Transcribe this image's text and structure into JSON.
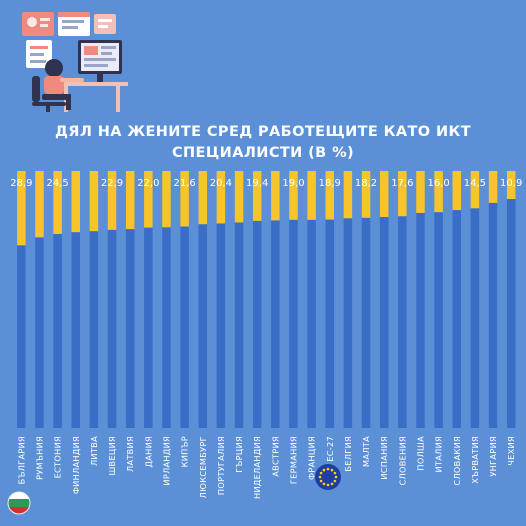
{
  "title_lines": [
    "ДЯЛ НА ЖЕНИТЕ СРЕД РАБОТЕЩИТЕ КАТО ИКТ",
    "СПЕЦИАЛИСТИ (В %)"
  ],
  "colors": {
    "background": "#5b8fd6",
    "women": "#f7c52b",
    "men": "#3a6ec6",
    "text": "#ffffff"
  },
  "chart_data": {
    "type": "bar",
    "stacked": true,
    "orientation": "vertical",
    "title": "ДЯЛ НА ЖЕНИТЕ СРЕД РАБОТЕЩИТЕ КАТО ИКТ СПЕЦИАЛИСТИ (В %)",
    "ylim": [
      0,
      100
    ],
    "grid": false,
    "categories": [
      "БЪЛГАРИЯ",
      "РУМЪНИЯ",
      "ЕСТОНИЯ",
      "ФИНЛАНДИЯ",
      "ЛИТВА",
      "ШВЕЦИЯ",
      "ЛАТВИЯ",
      "ДАНИЯ",
      "ИРЛАНДИЯ",
      "КИПЪР",
      "ЛЮКСЕМБУРГ",
      "ПОРТУГАЛИЯ",
      "ГЪРЦИЯ",
      "НИДЕЛАНДИЯ",
      "АВСТРИЯ",
      "ГЕРМАНИЯ",
      "ФРАНЦИЯ",
      "ЕС-27",
      "БЕЛГИЯ",
      "МАЛТА",
      "ИСПАНИЯ",
      "СЛОВЕНИЯ",
      "ПОЛША",
      "ИТАЛИЯ",
      "СЛОВАКИЯ",
      "ХЪРВАТИЯ",
      "УНГАРИЯ",
      "ЧЕХИЯ"
    ],
    "values": [
      28.9,
      25.8,
      24.5,
      23.8,
      23.4,
      22.9,
      22.6,
      22.0,
      21.9,
      21.6,
      20.7,
      20.4,
      20.0,
      19.4,
      19.2,
      19.0,
      19.0,
      18.9,
      18.4,
      18.2,
      17.9,
      17.6,
      16.3,
      16.0,
      15.2,
      14.5,
      12.4,
      10.9
    ],
    "data_labels": [
      "28,9",
      "",
      "24,5",
      "",
      "",
      "22,9",
      "",
      "22,0",
      "",
      "21,6",
      "",
      "20,4",
      "",
      "19,4",
      "",
      "19,0",
      "",
      "18,9",
      "",
      "18,2",
      "",
      "17,6",
      "",
      "16,0",
      "",
      "14,5",
      "",
      "10,9"
    ]
  },
  "flags": {
    "left": "bulgaria-flag-icon",
    "right": "eu-flag-icon"
  }
}
